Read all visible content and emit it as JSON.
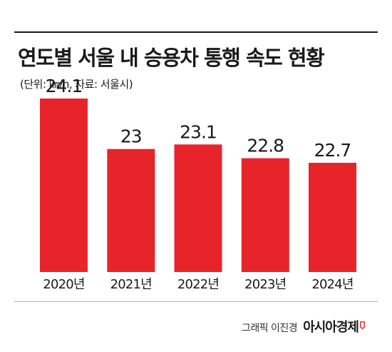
{
  "title": "연도별 서울 내 승용차 통행 속도 현황",
  "subtitle": "(단위: ㎞/h, 자료: 서울시)",
  "credit": "그래픽 이진경",
  "brand": "아시아경제",
  "colors": {
    "bar": "#e8242b",
    "text": "#1a1a1a",
    "brand_mark": "#e8242b"
  },
  "chart_data": {
    "type": "bar",
    "title": "연도별 서울 내 승용차 통행 속도 현황",
    "unit": "㎞/h",
    "categories": [
      "2020년",
      "2021년",
      "2022년",
      "2023년",
      "2024년"
    ],
    "values": [
      24.1,
      23,
      23.1,
      22.8,
      22.7
    ],
    "value_labels": [
      "24.1",
      "23",
      "23.1",
      "22.8",
      "22.7"
    ],
    "grid": false,
    "legend": "none"
  }
}
